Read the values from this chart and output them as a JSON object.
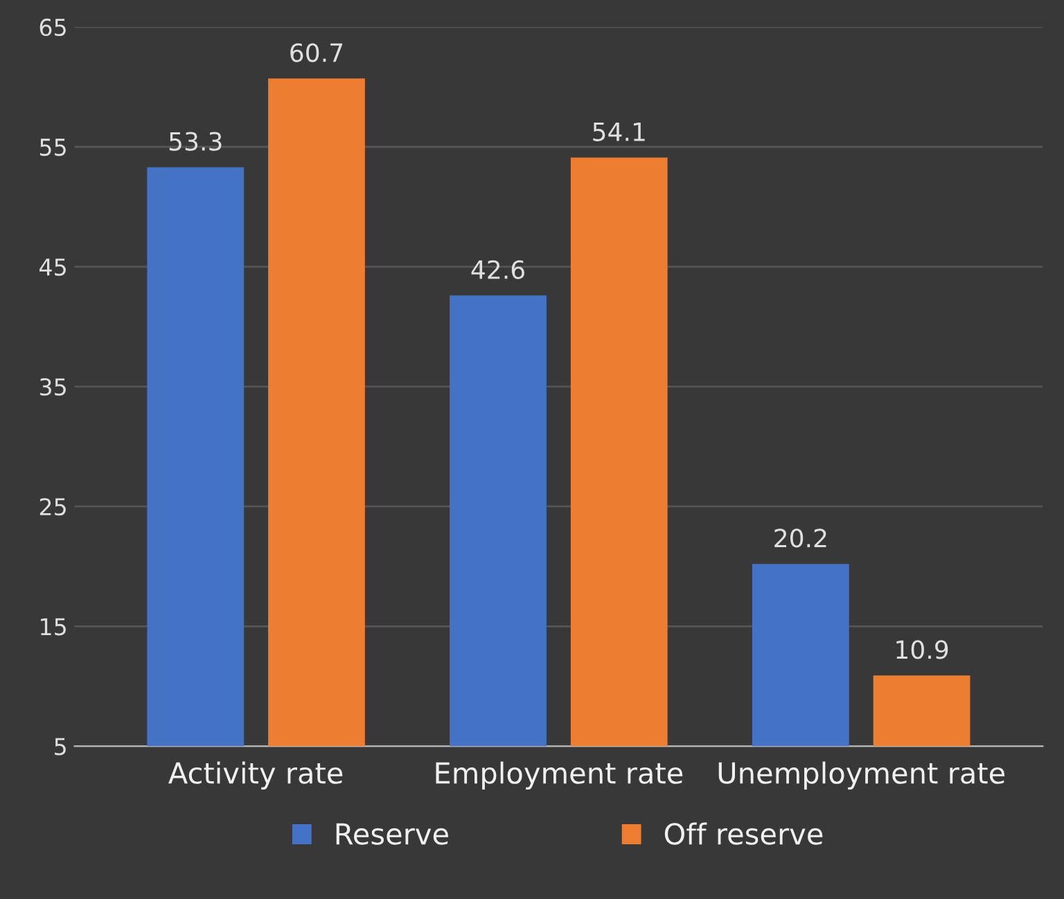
{
  "chart_data": {
    "type": "bar",
    "categories": [
      "Activity rate",
      "Employment rate",
      "Unemployment rate"
    ],
    "series": [
      {
        "name": "Reserve",
        "color": "#4472c4",
        "values": [
          53.3,
          42.6,
          20.2
        ]
      },
      {
        "name": "Off reserve",
        "color": "#ed7d31",
        "values": [
          60.7,
          54.1,
          10.9
        ]
      }
    ],
    "ylim": [
      5,
      65
    ],
    "yticks": [
      5,
      15,
      25,
      35,
      45,
      55,
      65
    ],
    "grid": "y",
    "legend": "bottom",
    "data_labels": true
  }
}
